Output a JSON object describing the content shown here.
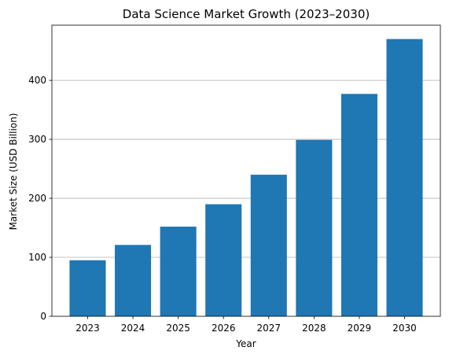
{
  "chart_data": {
    "type": "bar",
    "title": "Data Science Market Growth (2023–2030)",
    "xlabel": "Year",
    "ylabel": "Market Size (USD Billion)",
    "categories": [
      "2023",
      "2024",
      "2025",
      "2026",
      "2027",
      "2028",
      "2029",
      "2030"
    ],
    "values": [
      95,
      121,
      152,
      190,
      240,
      299,
      377,
      470
    ],
    "ylim": [
      0,
      493.5
    ],
    "yticks": [
      0,
      100,
      200,
      300,
      400
    ],
    "grid": {
      "y": true,
      "x": false
    },
    "colors": {
      "bar": "#1f77b4",
      "grid": "#b0b0b0",
      "axis": "#000000"
    }
  }
}
